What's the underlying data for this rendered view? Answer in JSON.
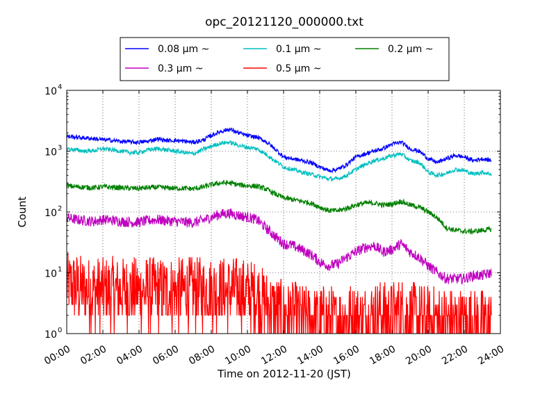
{
  "chart_data": {
    "type": "line",
    "title": "opc_20121120_000000.txt",
    "xlabel": "Time on 2012-11-20 (JST)",
    "ylabel": "Count",
    "yscale": "log",
    "ylim": [
      1,
      10000
    ],
    "xlim": [
      "00:00",
      "24:00"
    ],
    "grid": true,
    "legend_position": "top-center, above plot",
    "x_ticks": [
      "00:00",
      "02:00",
      "04:00",
      "06:00",
      "08:00",
      "10:00",
      "12:00",
      "14:00",
      "16:00",
      "18:00",
      "20:00",
      "22:00",
      "24:00"
    ],
    "y_ticks": [
      {
        "base": "10",
        "exp": "0",
        "value": 1
      },
      {
        "base": "10",
        "exp": "1",
        "value": 10
      },
      {
        "base": "10",
        "exp": "2",
        "value": 100
      },
      {
        "base": "10",
        "exp": "3",
        "value": 1000
      },
      {
        "base": "10",
        "exp": "4",
        "value": 10000
      }
    ],
    "x_hours": [
      0,
      0.5,
      1,
      1.5,
      2,
      2.5,
      3,
      3.5,
      4,
      4.5,
      5,
      5.5,
      6,
      6.5,
      7,
      7.5,
      8,
      8.5,
      9,
      9.5,
      10,
      10.5,
      11,
      11.5,
      12,
      12.5,
      13,
      13.5,
      14,
      14.5,
      15,
      15.5,
      16,
      16.5,
      17,
      17.5,
      18,
      18.5,
      19,
      19.5,
      20,
      20.5,
      21,
      21.5,
      22,
      22.5,
      23,
      23.5
    ],
    "series": [
      {
        "name": "0.08 μm ~",
        "color": "#0000ff",
        "noise": 0.04,
        "values": [
          1750,
          1700,
          1650,
          1600,
          1550,
          1500,
          1450,
          1420,
          1400,
          1450,
          1600,
          1500,
          1500,
          1450,
          1400,
          1500,
          1800,
          2100,
          2300,
          2000,
          1800,
          1700,
          1450,
          1100,
          800,
          750,
          700,
          650,
          550,
          480,
          500,
          600,
          800,
          900,
          1000,
          1100,
          1300,
          1400,
          1100,
          1000,
          750,
          650,
          750,
          850,
          800,
          700,
          750,
          700
        ]
      },
      {
        "name": "0.1 μm ~",
        "color": "#00bfbf",
        "noise": 0.04,
        "values": [
          1100,
          1050,
          1000,
          1020,
          1100,
          1050,
          1000,
          950,
          950,
          1050,
          1100,
          1050,
          1000,
          950,
          900,
          1050,
          1200,
          1350,
          1400,
          1250,
          1150,
          1100,
          900,
          700,
          550,
          500,
          450,
          420,
          380,
          350,
          350,
          400,
          500,
          600,
          700,
          750,
          850,
          900,
          700,
          650,
          450,
          400,
          430,
          500,
          480,
          420,
          450,
          420
        ]
      },
      {
        "name": "0.2 μm ~",
        "color": "#008000",
        "noise": 0.05,
        "values": [
          270,
          260,
          255,
          250,
          260,
          255,
          250,
          245,
          245,
          250,
          255,
          250,
          245,
          245,
          240,
          255,
          280,
          300,
          300,
          280,
          270,
          265,
          240,
          200,
          170,
          160,
          150,
          140,
          120,
          105,
          105,
          115,
          130,
          140,
          140,
          130,
          135,
          150,
          130,
          120,
          100,
          80,
          55,
          50,
          48,
          48,
          50,
          52
        ]
      },
      {
        "name": "0.3 μm ~",
        "color": "#bf00bf",
        "noise": 0.1,
        "values": [
          80,
          75,
          72,
          70,
          75,
          73,
          70,
          68,
          68,
          72,
          75,
          72,
          70,
          68,
          67,
          72,
          82,
          92,
          95,
          88,
          82,
          75,
          55,
          40,
          30,
          28,
          24,
          20,
          15,
          13,
          14,
          18,
          22,
          26,
          28,
          22,
          24,
          30,
          22,
          18,
          13,
          10,
          8,
          8,
          8,
          9,
          9,
          10
        ]
      },
      {
        "name": "0.5 μm ~",
        "color": "#ff0000",
        "noise": 0.55,
        "values": [
          6,
          6,
          5,
          5,
          5,
          5,
          5,
          5,
          5,
          5,
          5,
          5,
          5,
          5,
          5,
          5,
          5,
          5,
          5,
          5,
          4.5,
          4.5,
          3,
          2.5,
          2,
          2,
          1.8,
          1.8,
          1.7,
          1.6,
          1.6,
          1.7,
          1.8,
          1.8,
          2,
          2,
          2,
          2.2,
          2,
          1.8,
          1.6,
          1.6,
          1.5,
          1.5,
          1.5,
          1.5,
          1.5,
          1.5
        ]
      }
    ]
  }
}
